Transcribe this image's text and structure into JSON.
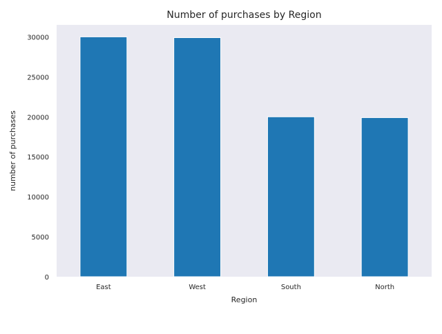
{
  "chart_data": {
    "type": "bar",
    "title": "Number of purchases by Region",
    "xlabel": "Region",
    "ylabel": "number of purchases",
    "categories": [
      "East",
      "West",
      "South",
      "North"
    ],
    "values": [
      30000,
      29900,
      20000,
      19900
    ],
    "ylim": [
      0,
      31500
    ],
    "yticks": [
      0,
      5000,
      10000,
      15000,
      20000,
      25000,
      30000
    ],
    "grid": false,
    "legend": "none",
    "colors": {
      "bar": "#1f77b4",
      "bar_edge": "#ffffff",
      "plot_background": "#eaeaf2",
      "page_background": "#ffffff",
      "text": "#262626"
    }
  }
}
